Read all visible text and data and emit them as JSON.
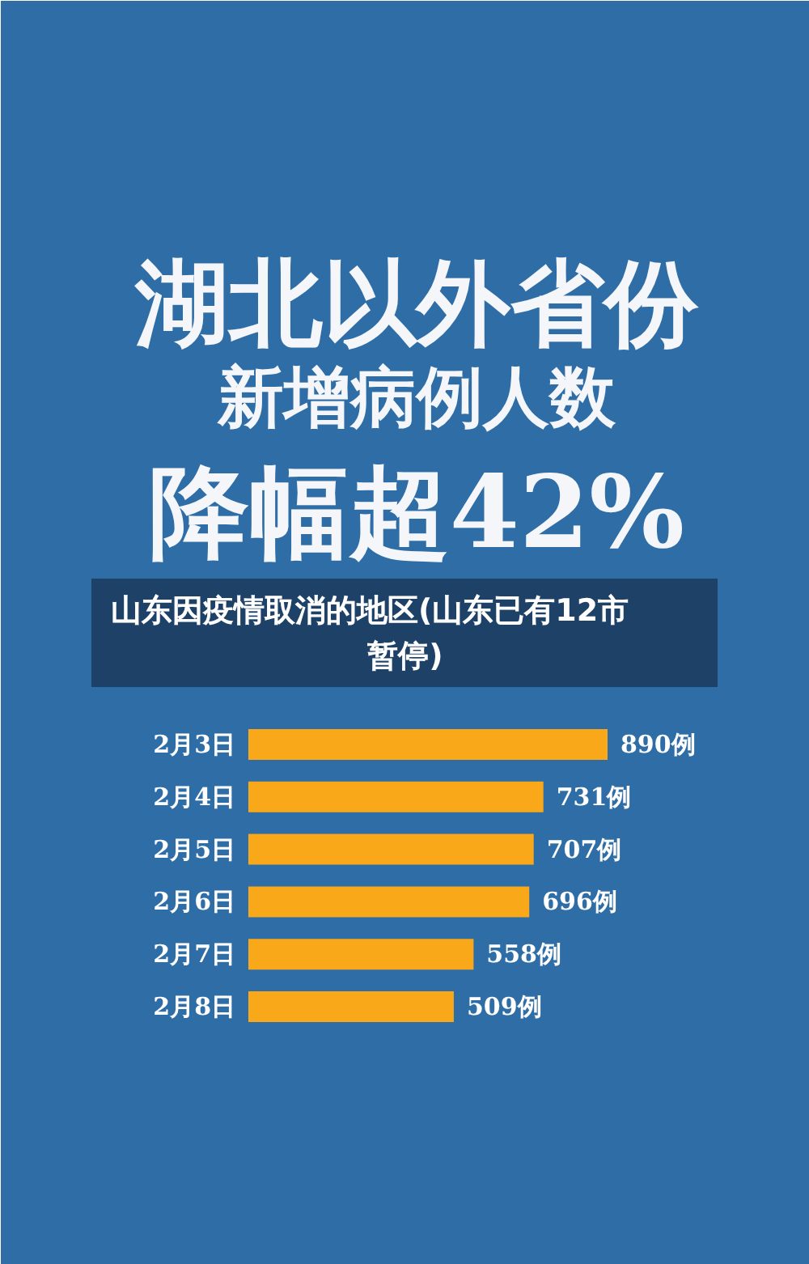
{
  "chart_data": {
    "type": "bar",
    "orientation": "horizontal",
    "title": "湖北以外省份新增病例人数降幅超42%",
    "categories": [
      "2月3日",
      "2月4日",
      "2月5日",
      "2月6日",
      "2月7日",
      "2月8日"
    ],
    "values": [
      890,
      731,
      707,
      696,
      558,
      509
    ],
    "value_labels": [
      "890例",
      "731例",
      "707例",
      "696例",
      "558例",
      "509例"
    ],
    "color": "#f9a81a",
    "annotations": [
      "山东因疫情取消的地区(山东已有12市暂停)"
    ]
  }
}
